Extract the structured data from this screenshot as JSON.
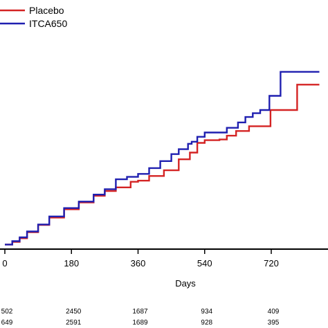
{
  "chart_data": {
    "type": "line",
    "step": true,
    "xlabel": "Days",
    "ylabel": "",
    "xticks": [
      0,
      180,
      360,
      540,
      720
    ],
    "xtick_labels": [
      "0",
      "180",
      "360",
      "540",
      "720"
    ],
    "xlim": [
      0,
      850
    ],
    "ylim": [
      0,
      1
    ],
    "legend_position": "top-left",
    "series": [
      {
        "name": "Placebo",
        "color": "#d42323",
        "points": [
          [
            0,
            0.005
          ],
          [
            20,
            0.017
          ],
          [
            40,
            0.033
          ],
          [
            60,
            0.06
          ],
          [
            90,
            0.092
          ],
          [
            120,
            0.125
          ],
          [
            160,
            0.162
          ],
          [
            200,
            0.192
          ],
          [
            240,
            0.222
          ],
          [
            270,
            0.243
          ],
          [
            300,
            0.259
          ],
          [
            340,
            0.284
          ],
          [
            360,
            0.289
          ],
          [
            390,
            0.31
          ],
          [
            430,
            0.335
          ],
          [
            470,
            0.384
          ],
          [
            500,
            0.414
          ],
          [
            520,
            0.457
          ],
          [
            540,
            0.469
          ],
          [
            580,
            0.472
          ],
          [
            600,
            0.489
          ],
          [
            625,
            0.51
          ],
          [
            660,
            0.531
          ],
          [
            700,
            0.531
          ],
          [
            712,
            0.531
          ],
          [
            718,
            0.603
          ],
          [
            760,
            0.603
          ],
          [
            790,
            0.603
          ],
          [
            790,
            0.716
          ],
          [
            850,
            0.716
          ]
        ]
      },
      {
        "name": "ITCA650",
        "color": "#1f1fb0",
        "points": [
          [
            0,
            0.005
          ],
          [
            20,
            0.02
          ],
          [
            40,
            0.037
          ],
          [
            60,
            0.063
          ],
          [
            90,
            0.094
          ],
          [
            120,
            0.13
          ],
          [
            160,
            0.167
          ],
          [
            200,
            0.196
          ],
          [
            240,
            0.227
          ],
          [
            270,
            0.251
          ],
          [
            300,
            0.295
          ],
          [
            330,
            0.306
          ],
          [
            360,
            0.319
          ],
          [
            390,
            0.345
          ],
          [
            420,
            0.376
          ],
          [
            450,
            0.407
          ],
          [
            470,
            0.429
          ],
          [
            495,
            0.453
          ],
          [
            505,
            0.462
          ],
          [
            520,
            0.484
          ],
          [
            540,
            0.503
          ],
          [
            570,
            0.503
          ],
          [
            600,
            0.524
          ],
          [
            630,
            0.548
          ],
          [
            650,
            0.572
          ],
          [
            670,
            0.589
          ],
          [
            690,
            0.603
          ],
          [
            715,
            0.666
          ],
          [
            730,
            0.666
          ],
          [
            745,
            0.666
          ],
          [
            745,
            0.773
          ],
          [
            850,
            0.773
          ]
        ]
      }
    ],
    "risk_table": {
      "x": [
        0,
        180,
        360,
        540,
        720
      ],
      "rows": [
        {
          "series": "Placebo",
          "values": [
            "502",
            "2450",
            "1687",
            "934",
            "409"
          ]
        },
        {
          "series": "ITCA650",
          "values": [
            "649",
            "2591",
            "1689",
            "928",
            "395"
          ]
        }
      ]
    }
  }
}
